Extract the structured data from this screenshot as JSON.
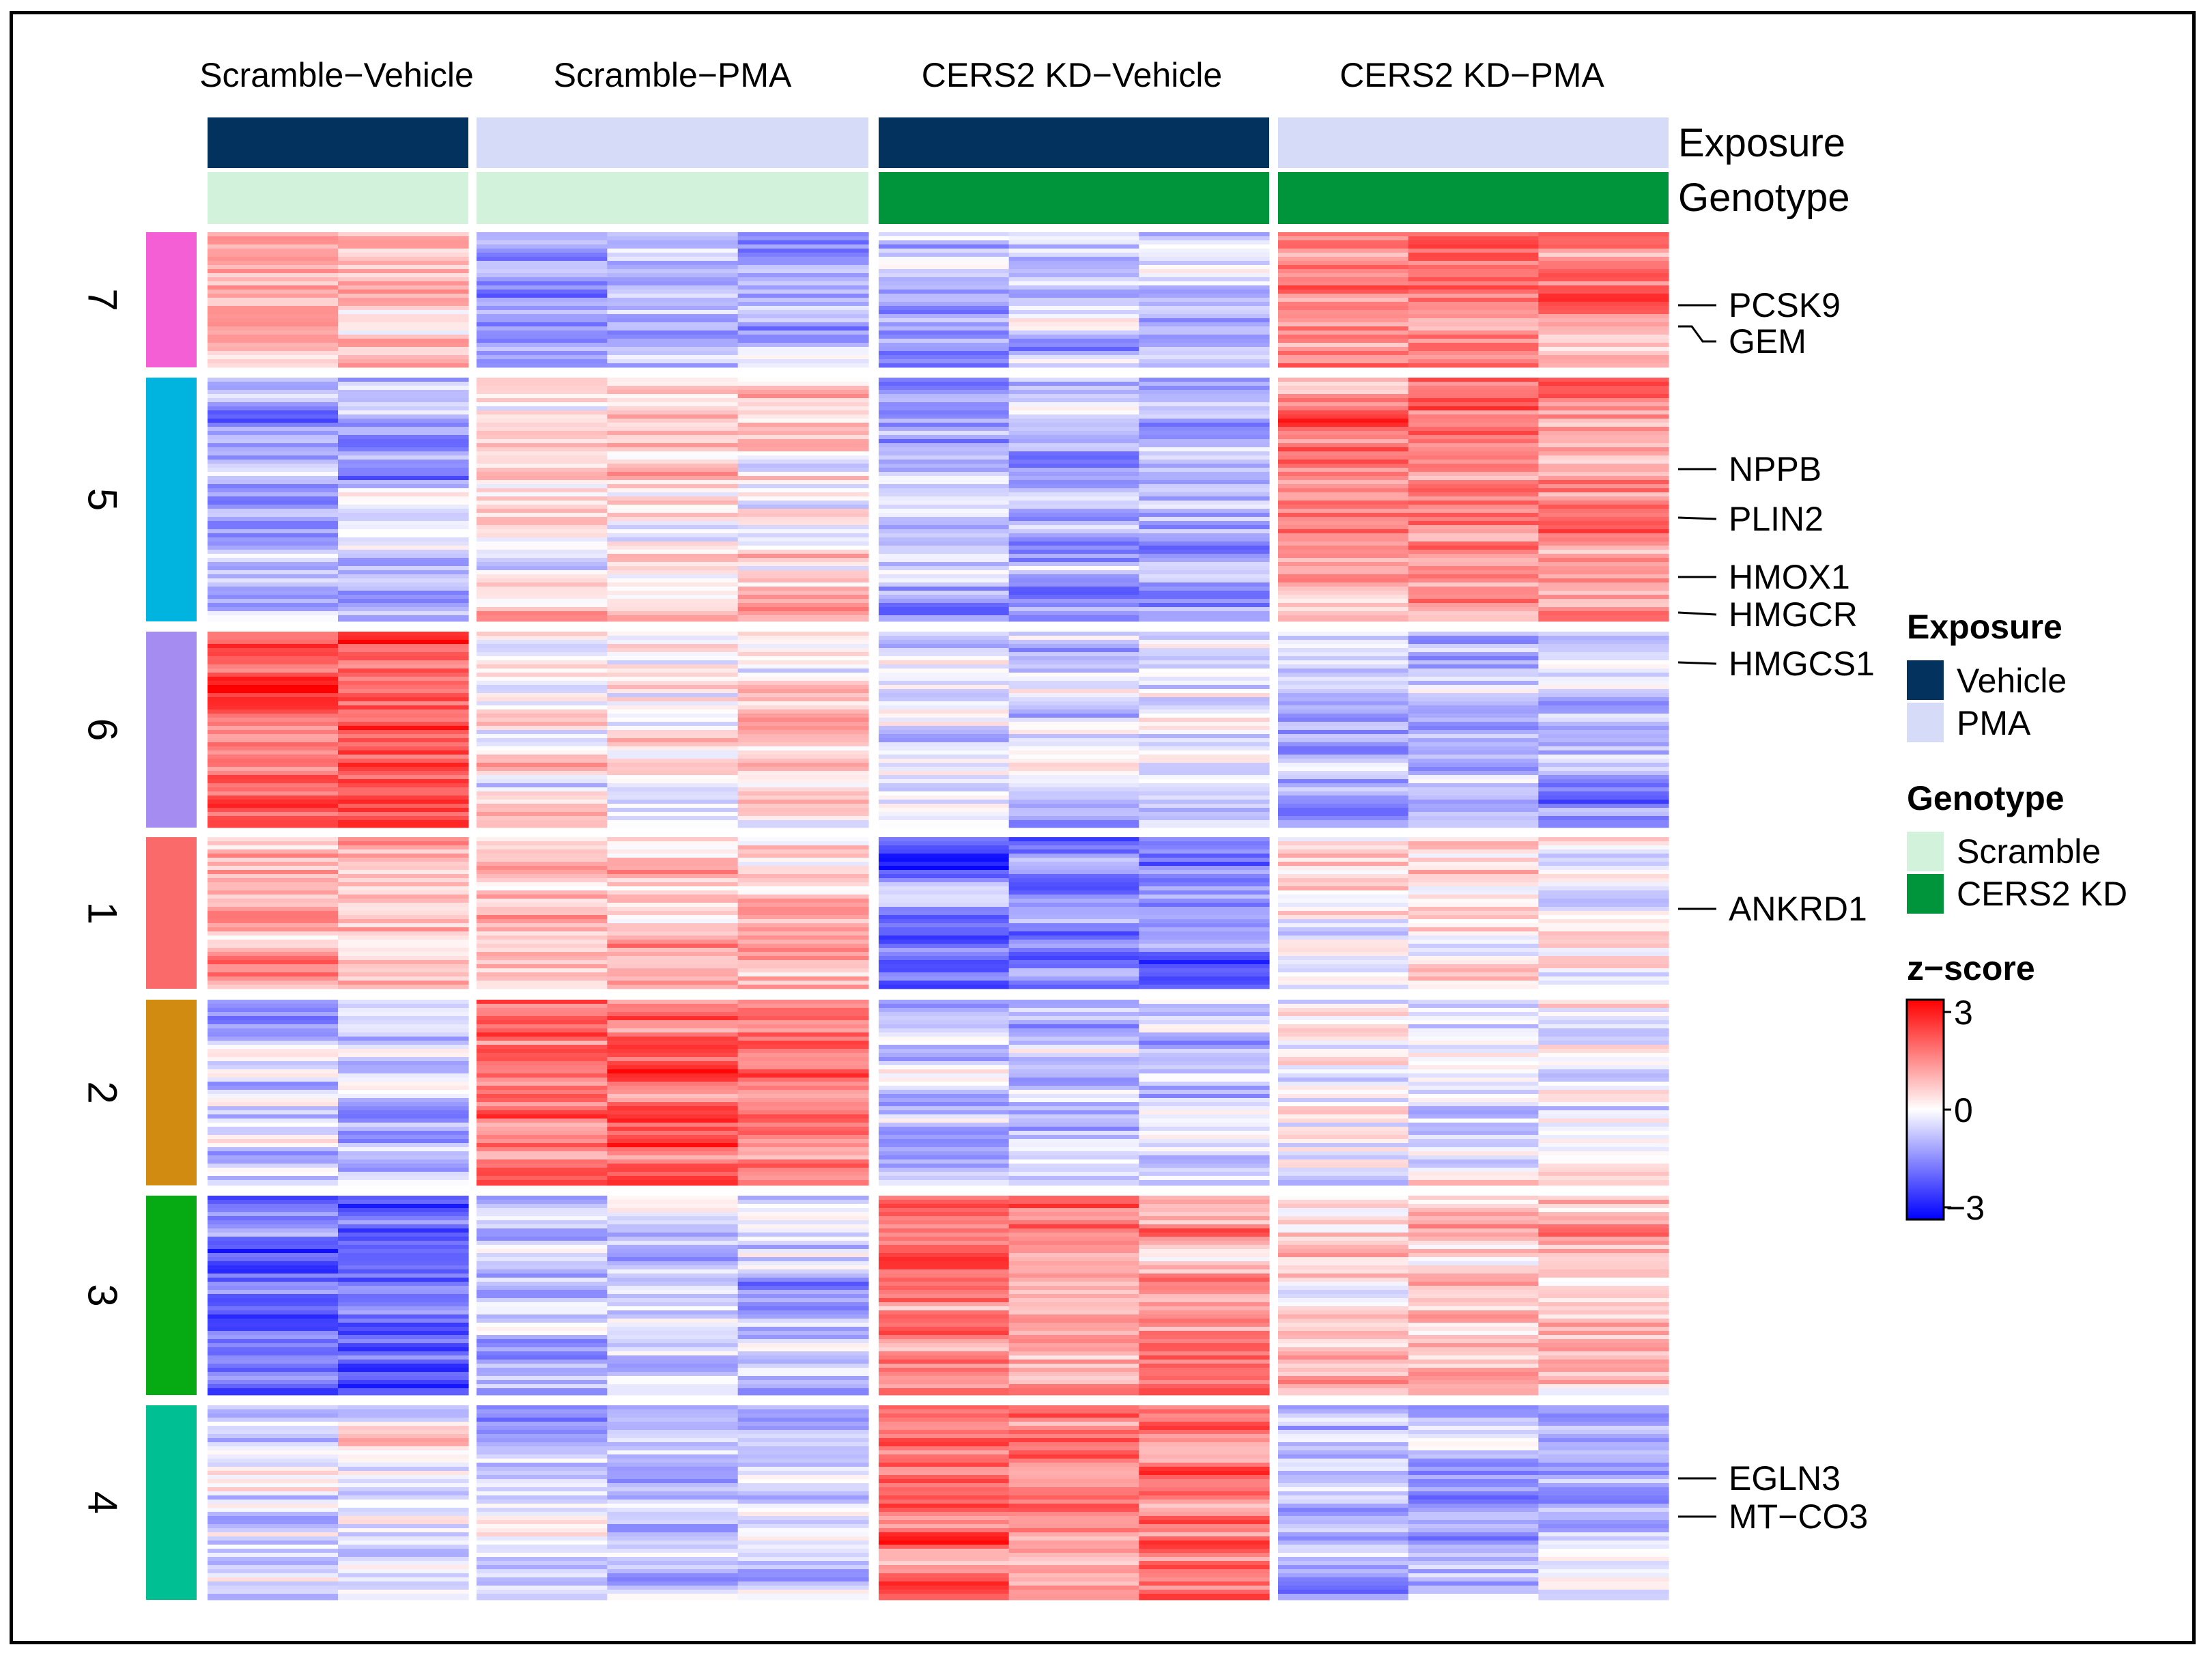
{
  "chart_data": {
    "type": "heatmap",
    "title": "",
    "column_groups": [
      "Scramble−Vehicle",
      "Scramble−PMA",
      "CERS2 KD−Vehicle",
      "CERS2 KD−PMA"
    ],
    "replicates_per_group": [
      2,
      3,
      3,
      3
    ],
    "annotation_tracks": [
      {
        "name": "Exposure",
        "values": [
          "Vehicle",
          "PMA",
          "Vehicle",
          "PMA"
        ]
      },
      {
        "name": "Genotype",
        "values": [
          "Scramble",
          "Scramble",
          "CERS2 KD",
          "CERS2 KD"
        ]
      }
    ],
    "row_clusters": [
      {
        "id": "7",
        "color": "#f55fd6",
        "relative_rows": 22,
        "mean_z": [
          0.8,
          -1.0,
          -0.7,
          1.3
        ]
      },
      {
        "id": "5",
        "color": "#00b4e0",
        "relative_rows": 36,
        "mean_z": [
          -0.8,
          0.4,
          -1.0,
          1.4
        ]
      },
      {
        "id": "6",
        "color": "#a58cf0",
        "relative_rows": 30,
        "mean_z": [
          2.0,
          0.1,
          -0.5,
          -0.8
        ]
      },
      {
        "id": "1",
        "color": "#fb6a6a",
        "relative_rows": 23,
        "mean_z": [
          1.0,
          0.7,
          -1.6,
          0.3
        ]
      },
      {
        "id": "2",
        "color": "#d08b10",
        "relative_rows": 28,
        "mean_z": [
          -0.6,
          1.7,
          -0.6,
          -0.1
        ]
      },
      {
        "id": "3",
        "color": "#06ab13",
        "relative_rows": 30,
        "mean_z": [
          -1.8,
          -0.6,
          1.4,
          0.6
        ]
      },
      {
        "id": "4",
        "color": "#00bf93",
        "relative_rows": 29,
        "mean_z": [
          -0.2,
          -0.6,
          1.7,
          -0.8
        ]
      }
    ],
    "z_range": [
      -3,
      3
    ],
    "colorscale": {
      "low": "#0000ff",
      "mid": "#ffffff",
      "high": "#ff0000"
    },
    "labeled_genes": [
      {
        "gene": "PCSK9",
        "cluster": "7"
      },
      {
        "gene": "GEM",
        "cluster": "7"
      },
      {
        "gene": "NPPB",
        "cluster": "5"
      },
      {
        "gene": "PLIN2",
        "cluster": "5"
      },
      {
        "gene": "HMOX1",
        "cluster": "5"
      },
      {
        "gene": "HMGCR",
        "cluster": "5"
      },
      {
        "gene": "HMGCS1",
        "cluster": "6"
      },
      {
        "gene": "ANKRD1",
        "cluster": "1"
      },
      {
        "gene": "EGLN3",
        "cluster": "4"
      },
      {
        "gene": "MT−CO3",
        "cluster": "4"
      }
    ]
  },
  "legend": {
    "exposure": {
      "title": "Exposure",
      "items": [
        {
          "label": "Vehicle",
          "color": "#04325f"
        },
        {
          "label": "PMA",
          "color": "#d6dbf7"
        }
      ]
    },
    "genotype": {
      "title": "Genotype",
      "items": [
        {
          "label": "Scramble",
          "color": "#d3f2dc"
        },
        {
          "label": "CERS2 KD",
          "color": "#00953b"
        }
      ]
    },
    "zscore": {
      "title": "z−score",
      "ticks": [
        "3",
        "0",
        "−3"
      ]
    }
  },
  "track_labels": {
    "exposure": "Exposure",
    "genotype": "Genotype"
  }
}
